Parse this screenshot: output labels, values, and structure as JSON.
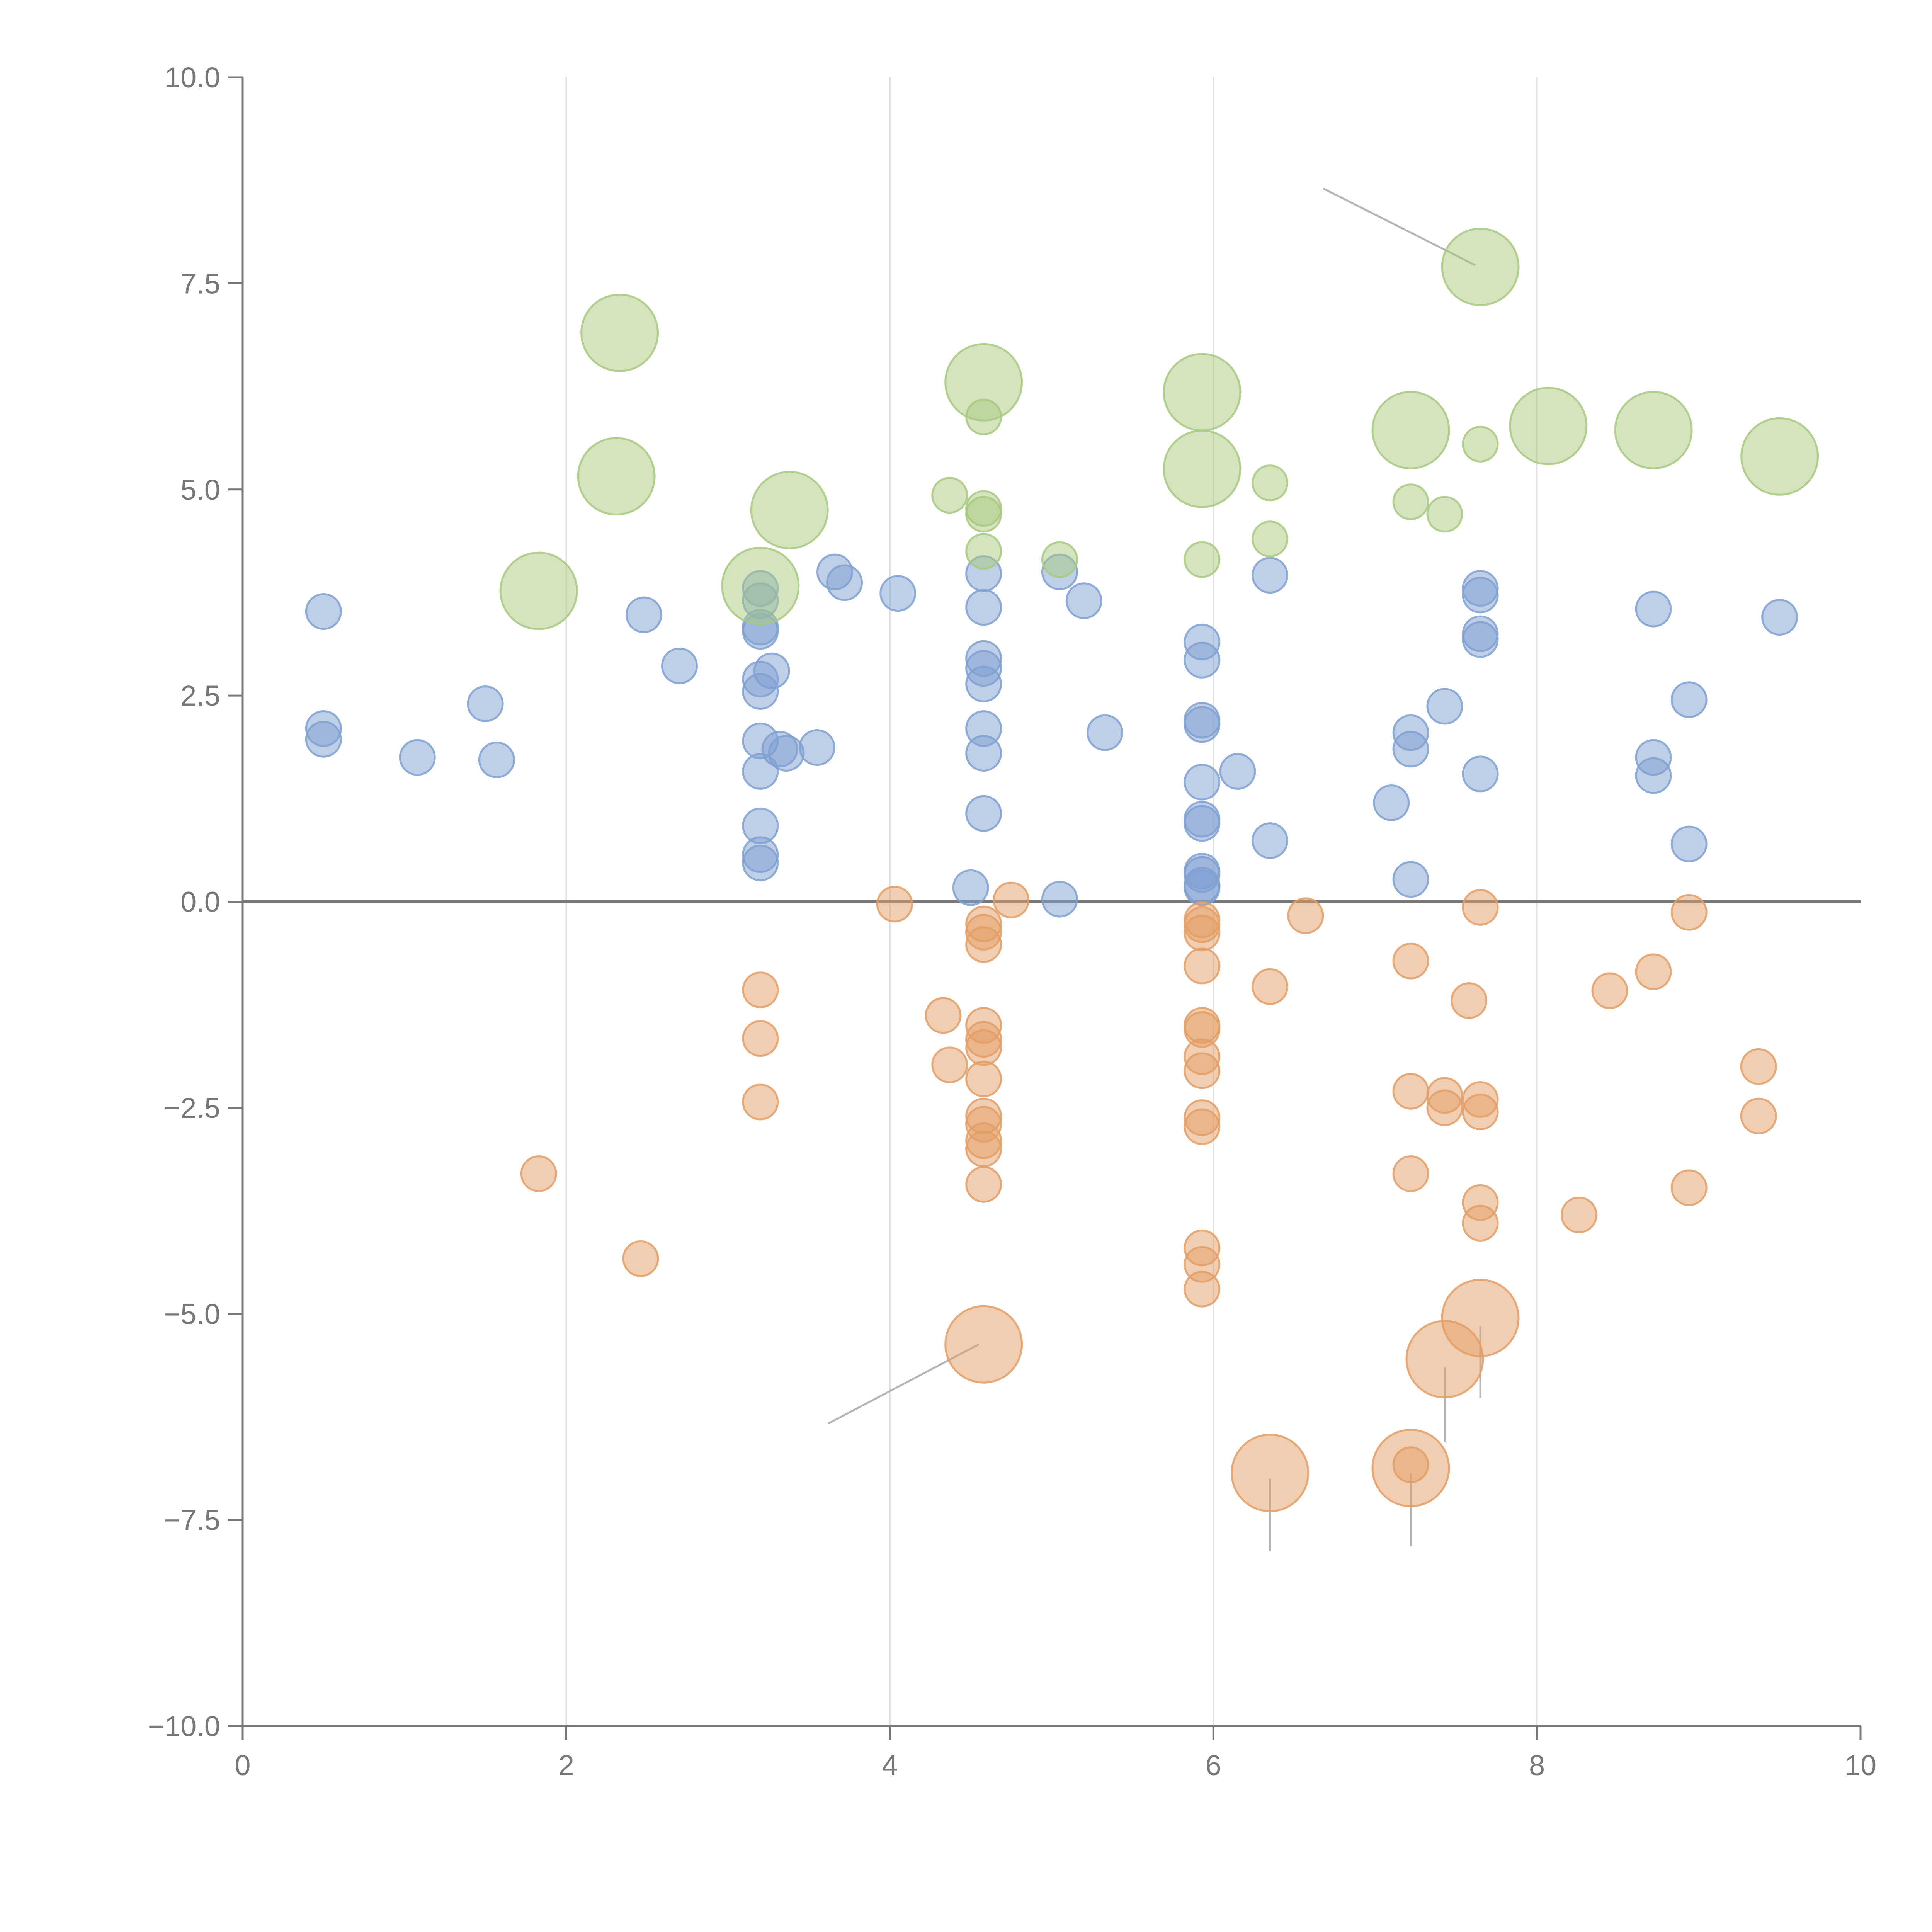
{
  "colors": {
    "blue": "#7fa0d1",
    "orange": "#e39d65",
    "green": "#a8c97f",
    "axis": "#777777",
    "grid": "#e0e0e0"
  },
  "chart_data": {
    "type": "scatter",
    "title": "",
    "xlabel": "",
    "ylabel": "",
    "xlim": [
      0,
      10
    ],
    "ylim": [
      -10,
      10
    ],
    "x_ticks": [
      0,
      2,
      4,
      6,
      8,
      10
    ],
    "x_tick_labels": [
      "0",
      "2",
      "4",
      "6",
      "8",
      "10"
    ],
    "y_ticks": [
      -10,
      -7.5,
      -5,
      -2.5,
      0,
      2.5,
      5,
      7.5,
      10
    ],
    "y_tick_labels": [
      "−10.0",
      "−7.5",
      "−5.0",
      "−2.5",
      "0.0",
      "2.5",
      "5.0",
      "7.5",
      "10.0"
    ],
    "vertical_grid": [
      2,
      4,
      6,
      8
    ],
    "reference_line_y": 0,
    "series": [
      {
        "name": "blue",
        "color": "#7fa0d1",
        "points": [
          [
            0.5,
            3.52,
            1
          ],
          [
            0.5,
            2.1,
            1
          ],
          [
            0.5,
            1.97,
            1
          ],
          [
            1.08,
            1.75,
            1
          ],
          [
            1.5,
            2.4,
            1
          ],
          [
            1.57,
            1.72,
            1
          ],
          [
            2.48,
            3.48,
            1
          ],
          [
            2.7,
            2.86,
            1
          ],
          [
            3.2,
            3.8,
            1
          ],
          [
            3.2,
            3.65,
            1
          ],
          [
            3.2,
            3.33,
            1
          ],
          [
            3.2,
            3.28,
            1
          ],
          [
            3.2,
            2.7,
            1
          ],
          [
            3.2,
            2.55,
            1
          ],
          [
            3.27,
            2.8,
            1
          ],
          [
            3.2,
            1.95,
            1
          ],
          [
            3.2,
            1.58,
            1
          ],
          [
            3.32,
            1.85,
            1
          ],
          [
            3.36,
            1.8,
            1
          ],
          [
            3.55,
            1.87,
            1
          ],
          [
            3.2,
            0.92,
            1
          ],
          [
            3.2,
            0.57,
            1
          ],
          [
            3.2,
            0.47,
            1
          ],
          [
            3.66,
            4.0,
            1
          ],
          [
            3.72,
            3.87,
            1
          ],
          [
            4.05,
            3.74,
            1
          ],
          [
            4.58,
            3.98,
            1
          ],
          [
            4.58,
            3.57,
            1
          ],
          [
            4.58,
            2.95,
            1
          ],
          [
            4.58,
            2.83,
            1
          ],
          [
            4.58,
            2.64,
            1
          ],
          [
            4.58,
            2.1,
            1
          ],
          [
            4.58,
            1.8,
            1
          ],
          [
            4.58,
            1.07,
            1
          ],
          [
            4.5,
            0.17,
            1
          ],
          [
            5.05,
            0.03,
            1
          ],
          [
            5.05,
            4.0,
            1
          ],
          [
            5.2,
            3.65,
            1
          ],
          [
            5.33,
            2.05,
            1
          ],
          [
            5.93,
            3.15,
            1
          ],
          [
            5.93,
            2.93,
            1
          ],
          [
            5.93,
            2.2,
            1
          ],
          [
            5.93,
            2.15,
            1
          ],
          [
            6.15,
            1.58,
            1
          ],
          [
            5.93,
            1.45,
            1
          ],
          [
            5.93,
            1.0,
            1
          ],
          [
            5.93,
            0.95,
            1
          ],
          [
            5.93,
            0.37,
            1
          ],
          [
            5.93,
            0.33,
            1
          ],
          [
            5.93,
            0.2,
            1
          ],
          [
            5.93,
            0.17,
            1
          ],
          [
            6.35,
            3.96,
            1
          ],
          [
            6.35,
            0.74,
            1
          ],
          [
            7.1,
            1.2,
            1
          ],
          [
            7.22,
            2.05,
            1
          ],
          [
            7.22,
            1.85,
            1
          ],
          [
            7.22,
            0.27,
            1
          ],
          [
            7.43,
            2.37,
            1
          ],
          [
            7.65,
            3.8,
            1
          ],
          [
            7.65,
            3.72,
            1
          ],
          [
            7.65,
            3.25,
            1
          ],
          [
            7.65,
            3.18,
            1
          ],
          [
            7.65,
            1.55,
            1
          ],
          [
            8.72,
            3.55,
            1
          ],
          [
            8.72,
            1.75,
            1
          ],
          [
            8.72,
            1.53,
            1
          ],
          [
            8.94,
            2.45,
            1
          ],
          [
            8.94,
            0.7,
            1
          ],
          [
            9.5,
            3.45,
            1
          ]
        ]
      },
      {
        "name": "orange",
        "color": "#e39d65",
        "points": [
          [
            1.83,
            -3.3,
            1
          ],
          [
            2.46,
            -4.33,
            1
          ],
          [
            3.2,
            -1.07,
            1
          ],
          [
            3.2,
            -1.66,
            1
          ],
          [
            3.2,
            -2.43,
            1
          ],
          [
            4.03,
            -0.03,
            1
          ],
          [
            4.33,
            -1.38,
            1
          ],
          [
            4.37,
            -1.98,
            1
          ],
          [
            4.75,
            0.02,
            1
          ],
          [
            4.58,
            -0.27,
            1
          ],
          [
            4.58,
            -0.37,
            1
          ],
          [
            4.58,
            -0.52,
            1
          ],
          [
            4.58,
            -1.5,
            1
          ],
          [
            4.58,
            -1.67,
            1
          ],
          [
            4.58,
            -1.77,
            1
          ],
          [
            4.58,
            -2.15,
            1
          ],
          [
            4.58,
            -2.6,
            1
          ],
          [
            4.58,
            -2.7,
            1
          ],
          [
            4.58,
            -2.9,
            1
          ],
          [
            4.58,
            -3.0,
            1
          ],
          [
            4.58,
            -3.43,
            1
          ],
          [
            5.93,
            -0.22,
            1
          ],
          [
            5.93,
            -0.28,
            1
          ],
          [
            5.93,
            -0.38,
            1
          ],
          [
            5.93,
            -0.78,
            1
          ],
          [
            5.93,
            -1.5,
            1
          ],
          [
            5.93,
            -1.55,
            1
          ],
          [
            5.93,
            -1.88,
            1
          ],
          [
            5.93,
            -2.05,
            1
          ],
          [
            5.93,
            -2.62,
            1
          ],
          [
            5.93,
            -2.73,
            1
          ],
          [
            5.93,
            -4.2,
            1
          ],
          [
            5.93,
            -4.4,
            1
          ],
          [
            5.93,
            -4.7,
            1
          ],
          [
            6.35,
            -1.03,
            1
          ],
          [
            6.57,
            -0.17,
            1
          ],
          [
            7.22,
            -0.72,
            1
          ],
          [
            7.22,
            -2.3,
            1
          ],
          [
            7.22,
            -3.3,
            1
          ],
          [
            7.22,
            -6.83,
            1
          ],
          [
            7.43,
            -2.35,
            1
          ],
          [
            7.43,
            -2.5,
            1
          ],
          [
            7.58,
            -1.2,
            1
          ],
          [
            7.65,
            -0.07,
            1
          ],
          [
            7.65,
            -2.4,
            1
          ],
          [
            7.65,
            -2.55,
            1
          ],
          [
            7.65,
            -3.65,
            1
          ],
          [
            7.65,
            -3.9,
            1
          ],
          [
            8.26,
            -3.8,
            1
          ],
          [
            8.45,
            -1.08,
            1
          ],
          [
            8.72,
            -0.85,
            1
          ],
          [
            8.94,
            -0.13,
            1
          ],
          [
            8.94,
            -3.47,
            1
          ],
          [
            9.37,
            -2.0,
            1
          ],
          [
            9.37,
            -2.6,
            1
          ],
          [
            4.58,
            -5.37,
            2.2
          ],
          [
            7.65,
            -5.05,
            2.2
          ],
          [
            7.43,
            -5.55,
            2.2
          ],
          [
            6.35,
            -6.93,
            2.2
          ],
          [
            7.22,
            -6.87,
            2.2
          ]
        ]
      },
      {
        "name": "green",
        "color": "#a8c97f",
        "points": [
          [
            4.37,
            4.93,
            1
          ],
          [
            4.58,
            5.88,
            1
          ],
          [
            4.58,
            4.77,
            1
          ],
          [
            4.58,
            4.7,
            1
          ],
          [
            4.58,
            4.25,
            1
          ],
          [
            5.05,
            4.15,
            1
          ],
          [
            5.93,
            4.15,
            1
          ],
          [
            6.35,
            5.08,
            1
          ],
          [
            6.35,
            4.4,
            1
          ],
          [
            7.22,
            4.85,
            1
          ],
          [
            7.43,
            4.7,
            1
          ],
          [
            7.65,
            5.55,
            1
          ],
          [
            2.33,
            6.9,
            2.2
          ],
          [
            2.31,
            5.16,
            2.2
          ],
          [
            1.83,
            3.77,
            2.2
          ],
          [
            3.38,
            4.75,
            2.2
          ],
          [
            3.2,
            3.83,
            2.2
          ],
          [
            4.58,
            6.3,
            2.2
          ],
          [
            5.93,
            6.18,
            2.2
          ],
          [
            5.93,
            5.25,
            2.2
          ],
          [
            7.22,
            5.72,
            2.2
          ],
          [
            7.65,
            7.7,
            2.2
          ],
          [
            8.07,
            5.77,
            2.2
          ],
          [
            8.72,
            5.72,
            2.2
          ],
          [
            9.5,
            5.4,
            2.2
          ]
        ]
      }
    ],
    "leader_lines": [
      {
        "from": [
          7.62,
          7.72
        ],
        "to": [
          6.68,
          8.65
        ]
      },
      {
        "from": [
          4.55,
          -5.37
        ],
        "to": [
          3.62,
          -6.33
        ]
      },
      {
        "from": [
          7.43,
          -5.65
        ],
        "to": [
          7.43,
          -6.55
        ]
      },
      {
        "from": [
          7.65,
          -5.15
        ],
        "to": [
          7.65,
          -6.02
        ]
      },
      {
        "from": [
          6.35,
          -7.0
        ],
        "to": [
          6.35,
          -7.88
        ]
      },
      {
        "from": [
          7.22,
          -6.93
        ],
        "to": [
          7.22,
          -7.82
        ]
      }
    ]
  }
}
